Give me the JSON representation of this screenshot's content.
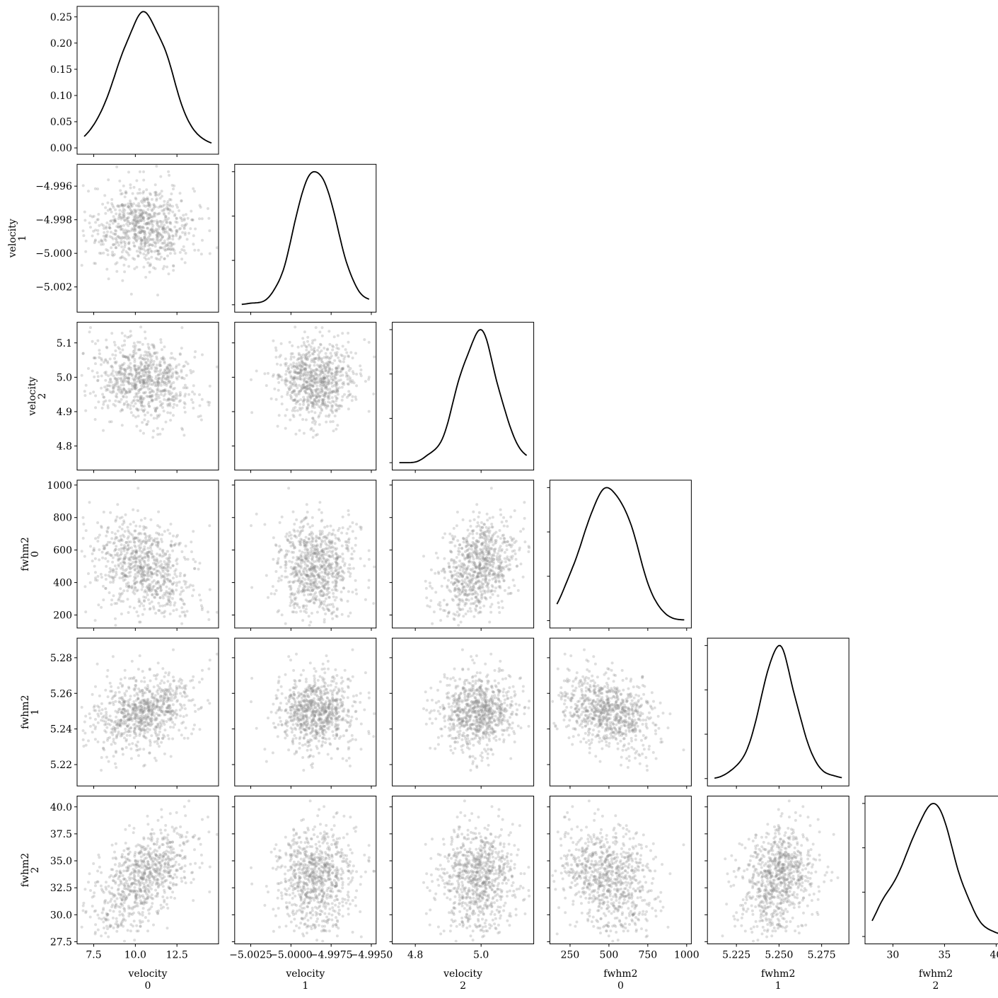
{
  "chart_data": {
    "type": "scatter",
    "subtype": "corner-pair-plot",
    "variables": [
      {
        "name": "velocity",
        "index": "0",
        "tick_labels": [
          "7.5",
          "10.0",
          "12.5"
        ],
        "ticks": [
          7.5,
          10.0,
          12.5
        ],
        "range": [
          6.5,
          15.0
        ],
        "mean": 10.5,
        "sd": 1.5
      },
      {
        "name": "velocity",
        "index": "1",
        "tick_labels": [
          "−5.0025",
          "−5.0000",
          "−4.9975",
          "−4.9950"
        ],
        "y_tick_labels": [
          "−4.996",
          "−4.998",
          "−5.000",
          "−5.002"
        ],
        "ticks": [
          -5.0025,
          -5.0,
          -4.9975,
          -4.995
        ],
        "y_ticks": [
          -4.996,
          -4.998,
          -5.0,
          -5.002
        ],
        "range": [
          -5.0035,
          -4.9947
        ],
        "mean": -4.9985,
        "sd": 0.0013
      },
      {
        "name": "velocity",
        "index": "2",
        "tick_labels": [
          "4.8",
          "5.0"
        ],
        "y_tick_labels": [
          "5.1",
          "5.0",
          "4.9",
          "4.8"
        ],
        "ticks": [
          4.8,
          5.0
        ],
        "y_ticks": [
          5.1,
          5.0,
          4.9,
          4.8
        ],
        "range": [
          4.73,
          5.16
        ],
        "mean": 4.99,
        "sd": 0.06
      },
      {
        "name": "fwhm2",
        "index": "0",
        "tick_labels": [
          "250",
          "500",
          "750",
          "1000"
        ],
        "y_tick_labels": [
          "1000",
          "800",
          "600",
          "400",
          "200"
        ],
        "ticks": [
          250,
          500,
          750,
          1000
        ],
        "y_ticks": [
          1000,
          800,
          600,
          400,
          200
        ],
        "range": [
          120,
          1030
        ],
        "mean": 490,
        "sd": 150
      },
      {
        "name": "fwhm2",
        "index": "1",
        "tick_labels": [
          "5.225",
          "5.250",
          "5.275"
        ],
        "y_tick_labels": [
          "5.28",
          "5.26",
          "5.24",
          "5.22"
        ],
        "ticks": [
          5.225,
          5.25,
          5.275
        ],
        "y_ticks": [
          5.28,
          5.26,
          5.24,
          5.22
        ],
        "range": [
          5.208,
          5.291
        ],
        "mean": 5.25,
        "sd": 0.011
      },
      {
        "name": "fwhm2",
        "index": "2",
        "tick_labels": [
          "30",
          "35",
          "40"
        ],
        "y_tick_labels": [
          "40.0",
          "37.5",
          "35.0",
          "32.5",
          "30.0",
          "27.5"
        ],
        "ticks": [
          30,
          35,
          40
        ],
        "y_ticks": [
          40.0,
          37.5,
          35.0,
          32.5,
          30.0,
          27.5
        ],
        "range": [
          27.3,
          41.0
        ],
        "mean": 33.5,
        "sd": 2.3
      }
    ],
    "top_density": {
      "y_tick_labels": [
        "0.25",
        "0.20",
        "0.15",
        "0.10",
        "0.05",
        "0.00"
      ],
      "y_ticks": [
        0.25,
        0.2,
        0.15,
        0.1,
        0.05,
        0.0
      ],
      "ylim": [
        -0.012,
        0.27
      ]
    },
    "correlations": [
      {
        "pair": [
          1,
          0
        ],
        "r": 0.0
      },
      {
        "pair": [
          2,
          0
        ],
        "r": -0.15
      },
      {
        "pair": [
          2,
          1
        ],
        "r": 0.0
      },
      {
        "pair": [
          3,
          0
        ],
        "r": -0.3
      },
      {
        "pair": [
          3,
          1
        ],
        "r": 0.0
      },
      {
        "pair": [
          3,
          2
        ],
        "r": 0.35
      },
      {
        "pair": [
          4,
          0
        ],
        "r": 0.3
      },
      {
        "pair": [
          4,
          1
        ],
        "r": 0.0
      },
      {
        "pair": [
          4,
          2
        ],
        "r": 0.0
      },
      {
        "pair": [
          4,
          3
        ],
        "r": -0.3
      },
      {
        "pair": [
          5,
          0
        ],
        "r": 0.55
      },
      {
        "pair": [
          5,
          1
        ],
        "r": 0.0
      },
      {
        "pair": [
          5,
          2
        ],
        "r": 0.0
      },
      {
        "pair": [
          5,
          3
        ],
        "r": -0.2
      },
      {
        "pair": [
          5,
          4
        ],
        "r": 0.15
      }
    ],
    "n_samples": 800,
    "point_color": "#888888",
    "line_color": "#000000",
    "grid": false
  }
}
